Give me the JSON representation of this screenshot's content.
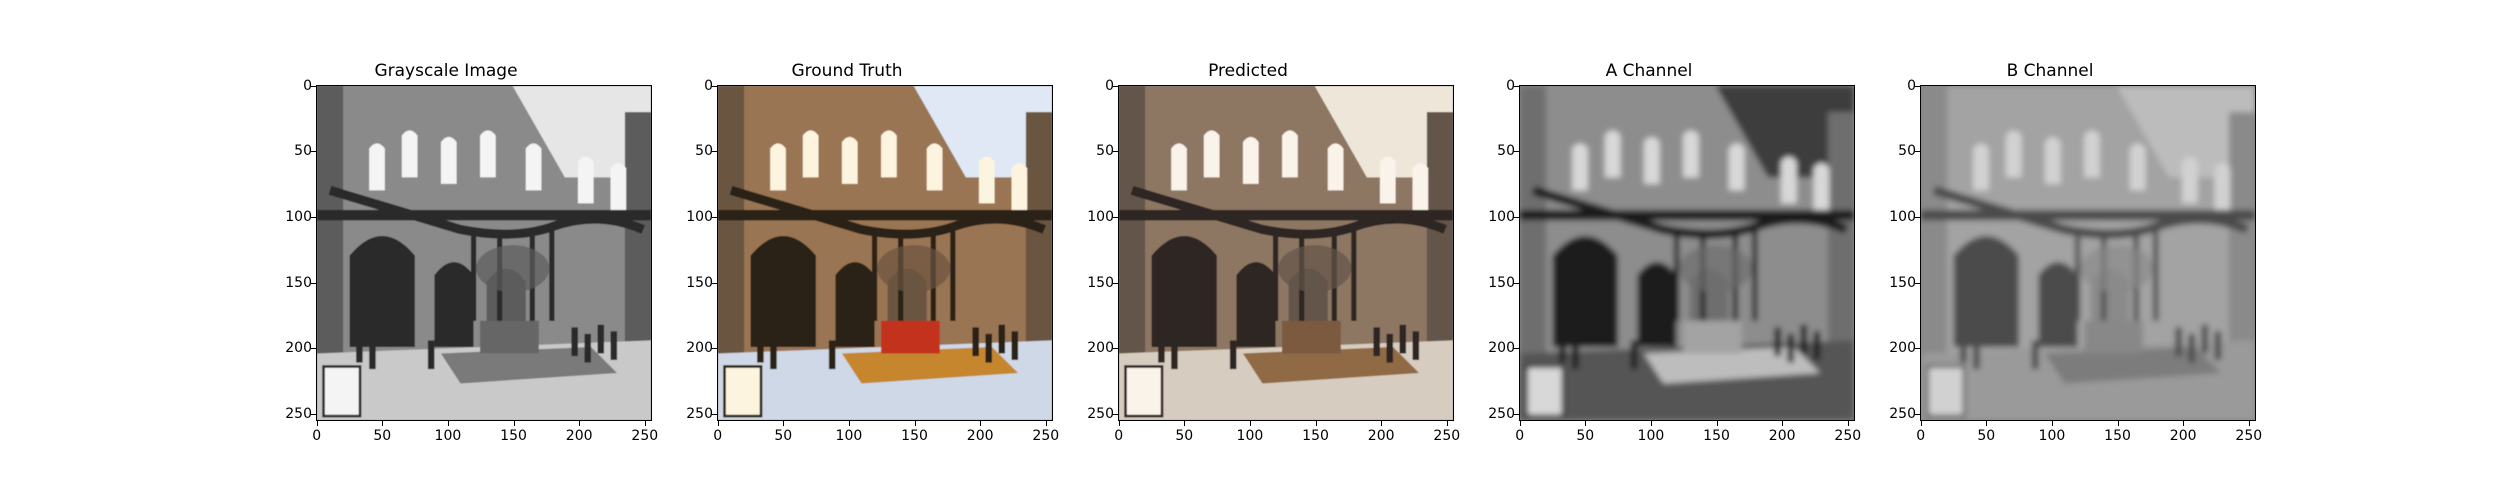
{
  "figure": {
    "panels": [
      {
        "key": "gray",
        "title": "Grayscale Image",
        "tone": "gray"
      },
      {
        "key": "truth",
        "title": "Ground Truth",
        "tone": "color"
      },
      {
        "key": "pred",
        "title": "Predicted",
        "tone": "sepia"
      },
      {
        "key": "a",
        "title": "A Channel",
        "tone": "channel-a"
      },
      {
        "key": "b",
        "title": "B Channel",
        "tone": "channel-b"
      }
    ],
    "y_ticks": [
      "0",
      "50",
      "100",
      "150",
      "200",
      "250"
    ],
    "x_ticks": [
      "0",
      "50",
      "100",
      "150",
      "200",
      "250"
    ],
    "image_extent": [
      0,
      256
    ]
  }
}
